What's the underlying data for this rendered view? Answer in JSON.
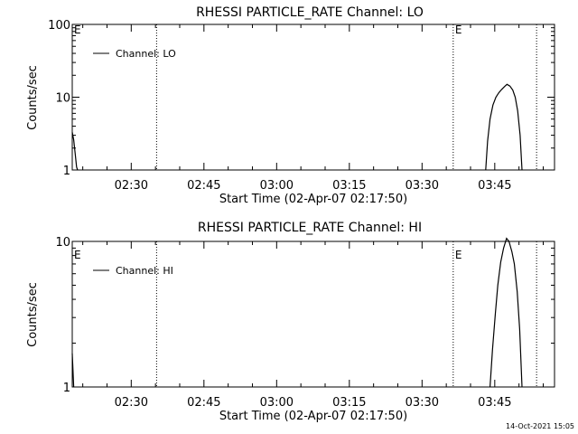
{
  "footer": {
    "timestamp": "14-Oct-2021 15:05"
  },
  "chart_data": [
    {
      "type": "line",
      "title": "RHESSI PARTICLE_RATE Channel: LO",
      "xlabel": "Start Time (02-Apr-07 02:17:50)",
      "ylabel": "Counts/sec",
      "yscale": "log",
      "ylim": [
        1,
        100
      ],
      "xlim_minutes": [
        0,
        99.5
      ],
      "ytick_values": [
        1,
        10,
        100
      ],
      "ytick_labels": [
        "1",
        "10",
        "100"
      ],
      "xtick_minutes": [
        12.17,
        27.17,
        42.17,
        57.17,
        72.17,
        87.17
      ],
      "xtick_labels": [
        "02:30",
        "02:45",
        "03:00",
        "03:15",
        "03:30",
        "03:45"
      ],
      "legend": {
        "label": "Channel: LO",
        "position": "top-left"
      },
      "markers": [
        {
          "minute": 0,
          "label": "E"
        },
        {
          "minute": 17.4,
          "label": ""
        },
        {
          "minute": 78.6,
          "label": "E"
        },
        {
          "minute": 95.8,
          "label": ""
        }
      ],
      "series": [
        {
          "name": "Channel: LO",
          "segments": [
            [
              [
                0,
                3.3
              ],
              [
                0.3,
                2.6
              ],
              [
                0.6,
                1.7
              ],
              [
                0.9,
                1.1
              ],
              [
                1.1,
                1.0
              ]
            ],
            [
              [
                85.3,
                1.0
              ],
              [
                85.7,
                2.5
              ],
              [
                86.2,
                5.0
              ],
              [
                86.8,
                7.8
              ],
              [
                87.4,
                10.0
              ],
              [
                88.0,
                11.5
              ],
              [
                88.6,
                12.8
              ],
              [
                89.2,
                14.0
              ],
              [
                89.7,
                15.0
              ],
              [
                90.3,
                14.2
              ],
              [
                90.9,
                12.5
              ],
              [
                91.4,
                10.0
              ],
              [
                91.9,
                6.5
              ],
              [
                92.4,
                3.0
              ],
              [
                92.8,
                1.0
              ]
            ]
          ]
        }
      ]
    },
    {
      "type": "line",
      "title": "RHESSI PARTICLE_RATE Channel: HI",
      "xlabel": "Start Time (02-Apr-07 02:17:50)",
      "ylabel": "Counts/sec",
      "yscale": "log",
      "ylim": [
        1,
        10
      ],
      "xlim_minutes": [
        0,
        99.5
      ],
      "ytick_values": [
        1,
        10
      ],
      "ytick_labels": [
        "1",
        "10"
      ],
      "xtick_minutes": [
        12.17,
        27.17,
        42.17,
        57.17,
        72.17,
        87.17
      ],
      "xtick_labels": [
        "02:30",
        "02:45",
        "03:00",
        "03:15",
        "03:30",
        "03:45"
      ],
      "legend": {
        "label": "Channel: HI",
        "position": "top-left"
      },
      "markers": [
        {
          "minute": 0,
          "label": "E"
        },
        {
          "minute": 17.4,
          "label": ""
        },
        {
          "minute": 78.6,
          "label": "E"
        },
        {
          "minute": 95.8,
          "label": ""
        }
      ],
      "series": [
        {
          "name": "Channel: HI",
          "segments": [
            [
              [
                0,
                1.7
              ],
              [
                0.3,
                1.0
              ]
            ],
            [
              [
                86.2,
                1.0
              ],
              [
                86.7,
                1.8
              ],
              [
                87.3,
                3.2
              ],
              [
                87.8,
                5.0
              ],
              [
                88.4,
                7.2
              ],
              [
                89.0,
                9.0
              ],
              [
                89.6,
                10.5
              ],
              [
                90.1,
                10.0
              ],
              [
                90.7,
                8.5
              ],
              [
                91.2,
                7.0
              ],
              [
                91.8,
                4.5
              ],
              [
                92.3,
                2.5
              ],
              [
                92.8,
                1.0
              ]
            ]
          ]
        }
      ]
    }
  ]
}
